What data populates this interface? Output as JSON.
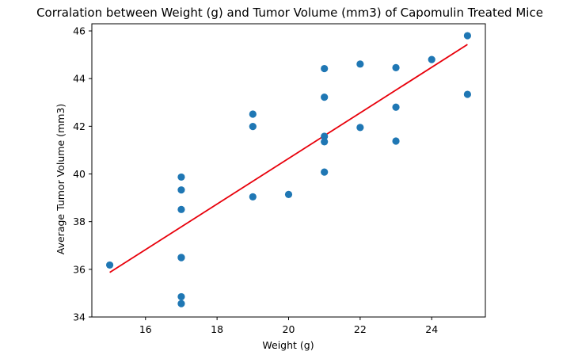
{
  "chart_data": {
    "type": "scatter",
    "title": "Corralation between Weight (g) and Tumor Volume (mm3) of Capomulin Treated Mice",
    "xlabel": "Weight (g)",
    "ylabel": "Average Tumor Volume (mm3)",
    "xlim": [
      14.5,
      25.5
    ],
    "ylim": [
      34,
      46.3
    ],
    "xticks": [
      16,
      18,
      20,
      22,
      24
    ],
    "yticks": [
      34,
      36,
      38,
      40,
      42,
      44,
      46
    ],
    "grid": false,
    "points": [
      {
        "x": 15,
        "y": 36.18
      },
      {
        "x": 17,
        "y": 39.87
      },
      {
        "x": 17,
        "y": 39.33
      },
      {
        "x": 17,
        "y": 38.51
      },
      {
        "x": 17,
        "y": 36.5
      },
      {
        "x": 17,
        "y": 36.49
      },
      {
        "x": 17,
        "y": 34.85
      },
      {
        "x": 17,
        "y": 34.56
      },
      {
        "x": 19,
        "y": 42.51
      },
      {
        "x": 19,
        "y": 41.99
      },
      {
        "x": 19,
        "y": 39.04
      },
      {
        "x": 20,
        "y": 39.14
      },
      {
        "x": 21,
        "y": 44.42
      },
      {
        "x": 21,
        "y": 43.22
      },
      {
        "x": 21,
        "y": 41.58
      },
      {
        "x": 21,
        "y": 41.35
      },
      {
        "x": 21,
        "y": 40.08
      },
      {
        "x": 22,
        "y": 44.61
      },
      {
        "x": 22,
        "y": 41.95
      },
      {
        "x": 23,
        "y": 44.46
      },
      {
        "x": 23,
        "y": 42.8
      },
      {
        "x": 23,
        "y": 41.38
      },
      {
        "x": 24,
        "y": 44.8
      },
      {
        "x": 25,
        "y": 45.8
      },
      {
        "x": 25,
        "y": 43.34
      }
    ],
    "regression": {
      "x": [
        15,
        25
      ],
      "y": [
        35.87,
        45.43
      ]
    },
    "colors": {
      "points": "#1f77b4",
      "regression": "#e8000b",
      "axes": "#000000"
    }
  }
}
